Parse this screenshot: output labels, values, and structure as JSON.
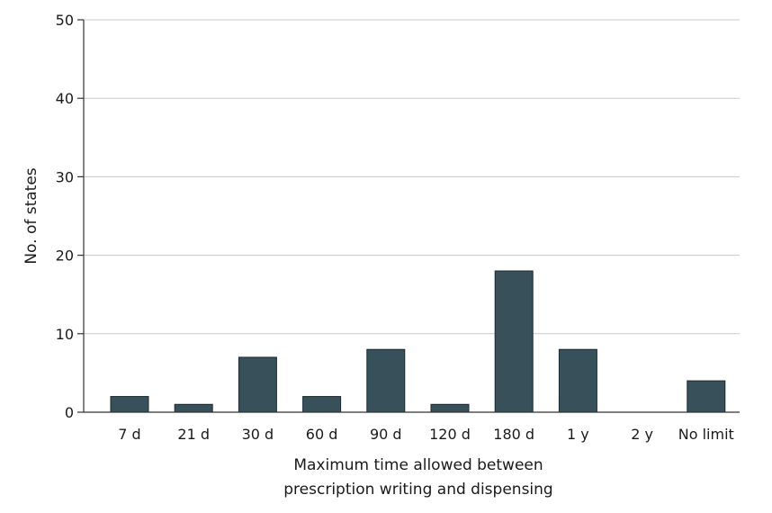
{
  "chart_data": {
    "type": "bar",
    "title": "",
    "xlabel_lines": [
      "Maximum time allowed between",
      "prescription writing and dispensing"
    ],
    "ylabel": "No. of states",
    "categories": [
      "7 d",
      "21 d",
      "30 d",
      "60 d",
      "90 d",
      "120 d",
      "180 d",
      "1 y",
      "2 y",
      "No limit"
    ],
    "values": [
      2,
      1,
      7,
      2,
      8,
      1,
      18,
      8,
      0,
      4
    ],
    "ylim": [
      0,
      50
    ],
    "yticks": [
      0,
      10,
      20,
      30,
      40,
      50
    ],
    "grid": true,
    "colors": {
      "bar": "#37505a",
      "bar_edge": "#1b2a30",
      "grid": "#c8c8c8",
      "axis": "#333333"
    }
  }
}
